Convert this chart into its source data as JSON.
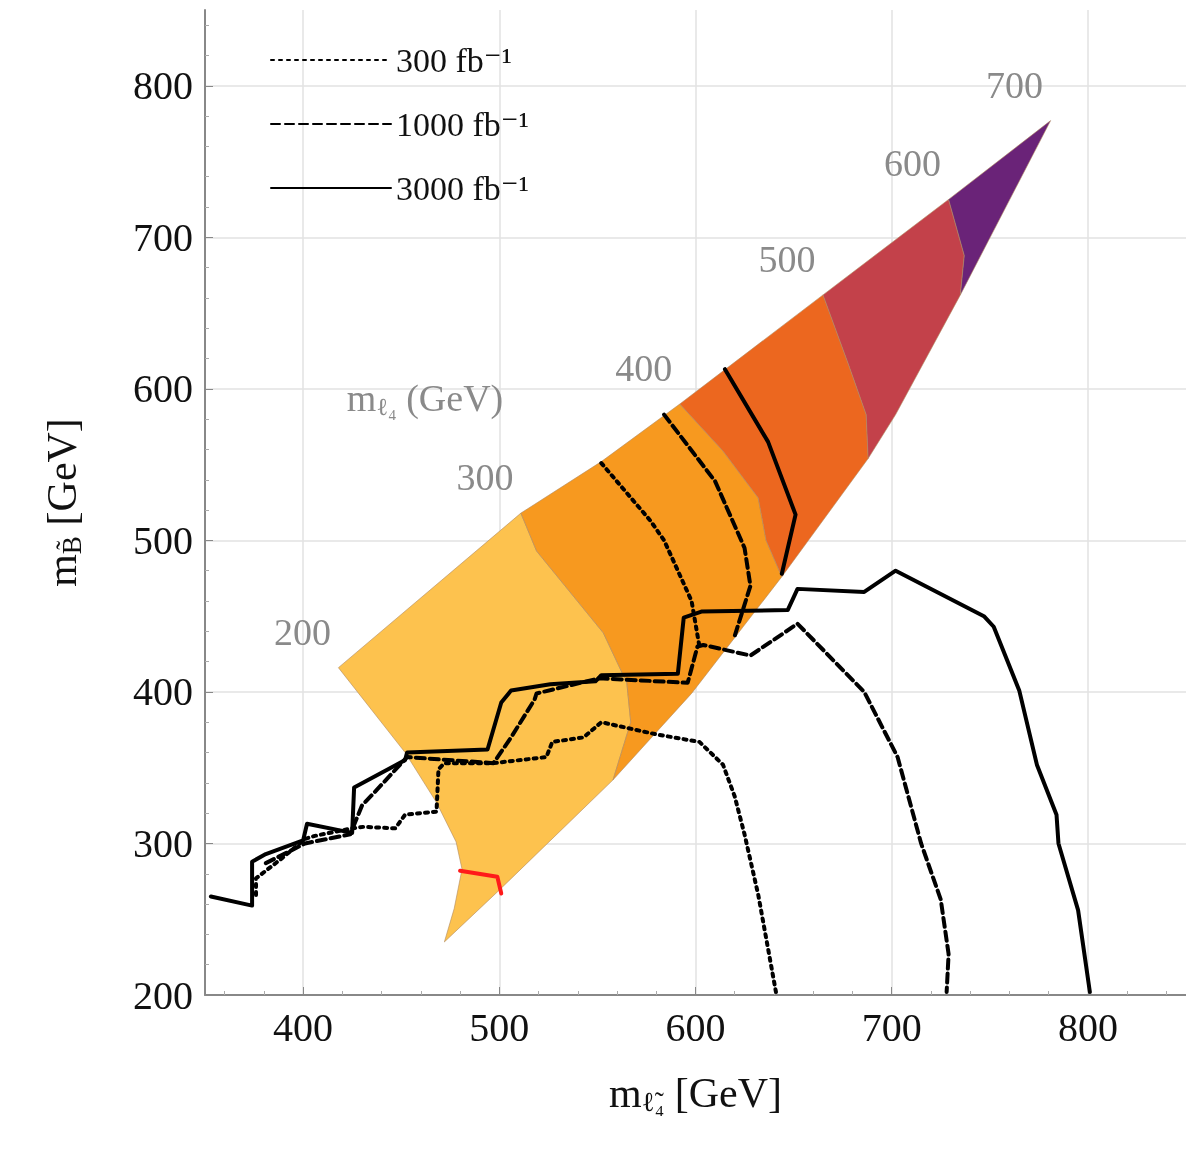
{
  "chart_data": {
    "type": "line",
    "xlabel": "m$_{ℓ̃₄}$ [GeV]",
    "ylabel": "m$_{B̃}$ [GeV]",
    "xlim": [
      350,
      850
    ],
    "ylim": [
      200,
      850
    ],
    "xticks": [
      400,
      500,
      600,
      700,
      800
    ],
    "yticks": [
      200,
      300,
      400,
      500,
      600,
      700,
      800
    ],
    "grid": true,
    "legend": "top left",
    "marker": "none",
    "series": [
      {
        "type": "area",
        "color": "#fdc24e",
        "x": [
          418,
          511,
          519,
          553,
          565,
          567,
          558,
          499,
          472,
          477,
          481,
          478,
          468,
          452,
          418
        ],
        "values": [
          416,
          518,
          493,
          439,
          406,
          380,
          342,
          268,
          235,
          257,
          283,
          301,
          327,
          360,
          416
        ]
      },
      {
        "type": "area",
        "color": "#f7991f",
        "x": [
          511,
          552,
          592,
          614,
          632,
          636,
          644,
          598,
          558,
          567,
          565,
          553,
          519,
          511
        ],
        "values": [
          518,
          552,
          590,
          559,
          528,
          500,
          476,
          399,
          342,
          380,
          406,
          439,
          493,
          518
        ]
      },
      {
        "type": "area",
        "color": "#ec671f",
        "x": [
          592,
          665,
          678,
          687,
          688,
          644,
          636,
          632,
          614,
          592
        ],
        "values": [
          590,
          662,
          616,
          583,
          554,
          476,
          500,
          528,
          559,
          590
        ]
      },
      {
        "type": "area",
        "color": "#c3414a",
        "x": [
          665,
          729,
          737,
          735,
          702,
          688,
          687,
          678,
          665
        ],
        "values": [
          662,
          725,
          688,
          662,
          583,
          554,
          583,
          616,
          662
        ]
      },
      {
        "type": "area",
        "color": "#6a2378",
        "x": [
          729,
          781,
          735,
          737,
          729
        ],
        "values": [
          725,
          777,
          662,
          688,
          725
        ]
      },
      {
        "name": "300 fb⁻¹",
        "color": "#000000",
        "line_style": "dotted",
        "x": [
          376,
          376,
          389,
          401,
          406,
          425,
          431,
          447,
          452,
          468,
          469,
          472,
          497,
          524,
          527,
          543,
          552,
          580,
          602,
          614,
          620,
          625,
          632,
          641
        ],
        "values": [
          266,
          277,
          290,
          303,
          305,
          310,
          311,
          310,
          319,
          321,
          349,
          353,
          353,
          357,
          367,
          370,
          380,
          372,
          367,
          352,
          331,
          306,
          266,
          202
        ]
      },
      {
        "name": "1000 fb⁻¹",
        "color": "#000000",
        "line_style": "dashed",
        "x": [
          381,
          401,
          424,
          430,
          438,
          453,
          497,
          506,
          518,
          519,
          551,
          596,
          601,
          604,
          628,
          652,
          686,
          703,
          715,
          725,
          729,
          728
        ],
        "values": [
          287,
          300,
          306,
          325,
          336,
          357,
          353,
          370,
          395,
          399,
          409,
          406,
          430,
          431,
          424,
          445,
          400,
          357,
          300,
          263,
          227,
          202
        ]
      },
      {
        "name": "3000 fb⁻¹",
        "color": "#000000",
        "line_style": "solid",
        "x": [
          353,
          374,
          374,
          381,
          400,
          402,
          425,
          426,
          452,
          453,
          494,
          501,
          506,
          526,
          549,
          552,
          591,
          594,
          603,
          647,
          652,
          686,
          702,
          747,
          752,
          765,
          774,
          784,
          785,
          795,
          801
        ],
        "values": [
          265,
          259,
          288,
          293,
          302,
          313,
          307,
          337,
          355,
          360,
          362,
          393,
          401,
          405,
          407,
          411,
          412,
          449,
          453,
          454,
          468,
          466,
          480,
          450,
          443,
          401,
          352,
          319,
          300,
          256,
          202
        ]
      },
      {
        "color": "#000000",
        "line_style": "dotted",
        "x": [
          552,
          577,
          584,
          598,
          602
        ],
        "values": [
          551,
          513,
          500,
          460,
          430
        ]
      },
      {
        "color": "#000000",
        "line_style": "dashed",
        "x": [
          584,
          610,
          625,
          628,
          620
        ],
        "values": [
          583,
          539,
          495,
          470,
          437
        ]
      },
      {
        "color": "#000000",
        "line_style": "solid",
        "x": [
          615,
          637,
          651,
          644
        ],
        "values": [
          613,
          565,
          517,
          478
        ]
      },
      {
        "color": "#ff1a1a",
        "line_style": "solid",
        "x": [
          480,
          499,
          501
        ],
        "values": [
          282,
          278,
          267
        ]
      }
    ],
    "annotations": [
      {
        "text": "200",
        "x": 418,
        "y": 416
      },
      {
        "text": "300",
        "x": 511,
        "y": 518
      },
      {
        "text": "400",
        "x": 592,
        "y": 590
      },
      {
        "text": "500",
        "x": 665,
        "y": 662
      },
      {
        "text": "600",
        "x": 729,
        "y": 725
      },
      {
        "text": "700",
        "x": 781,
        "y": 777
      },
      "m$_{ℓ₄}$ (GeV)"
    ]
  }
}
